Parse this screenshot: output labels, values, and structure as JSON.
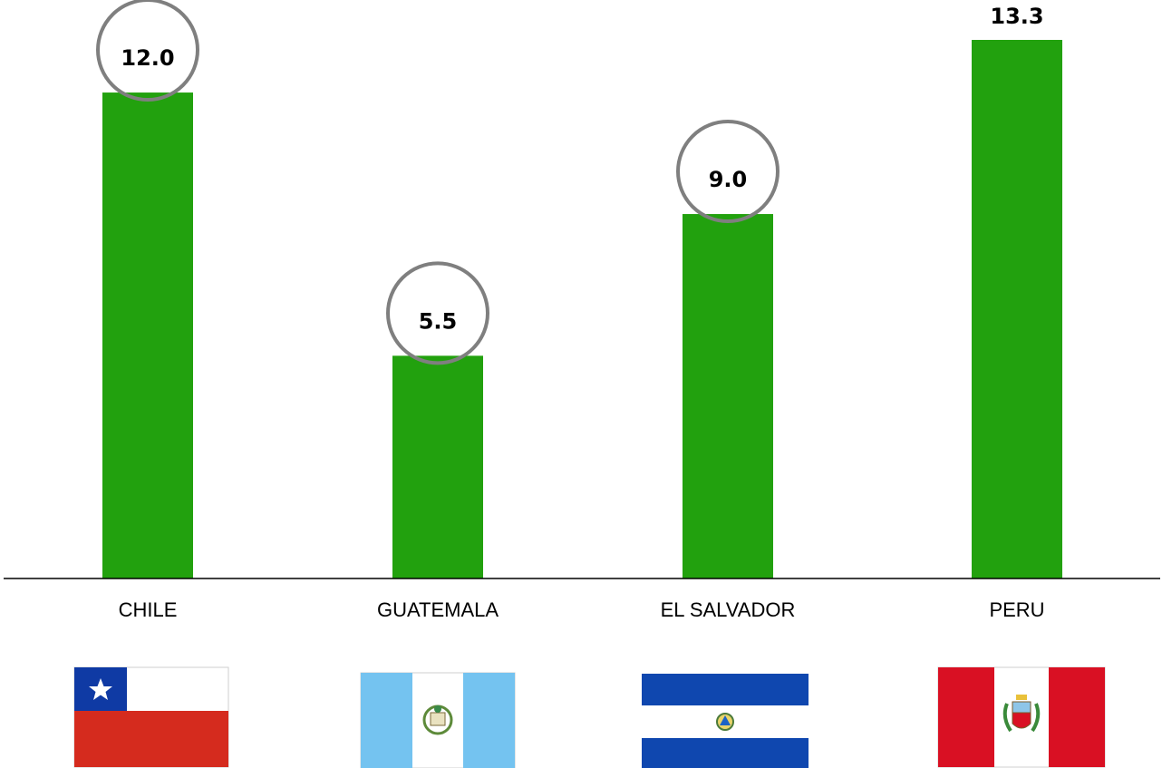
{
  "colors": {
    "bar": "#22a10e",
    "circle": "#7f7f7f",
    "axis": "#000000"
  },
  "chart_data": {
    "type": "bar",
    "categories": [
      "CHILE",
      "GUATEMALA",
      "EL SALVADOR",
      "PERU"
    ],
    "values": [
      12.0,
      5.5,
      9.0,
      13.3
    ],
    "value_labels": [
      "12.0",
      "5.5",
      "9.0",
      "13.3"
    ],
    "circled": [
      true,
      true,
      true,
      false
    ],
    "title": "",
    "xlabel": "",
    "ylabel": "",
    "ylim": [
      0,
      13.3
    ],
    "grid": false,
    "legend": "none"
  },
  "flags": [
    {
      "country": "CHILE",
      "icon": "chile-flag-icon"
    },
    {
      "country": "GUATEMALA",
      "icon": "guatemala-flag-icon"
    },
    {
      "country": "EL SALVADOR",
      "icon": "el-salvador-flag-icon"
    },
    {
      "country": "PERU",
      "icon": "peru-flag-icon"
    }
  ]
}
